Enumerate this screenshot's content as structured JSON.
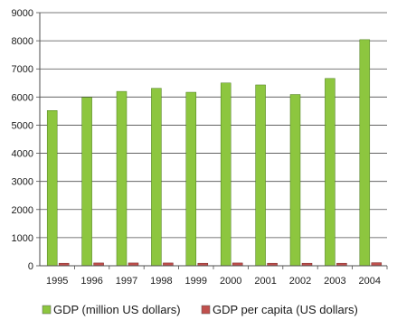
{
  "chart_data": {
    "type": "bar",
    "categories": [
      "1995",
      "1996",
      "1997",
      "1998",
      "1999",
      "2000",
      "2001",
      "2002",
      "2003",
      "2004"
    ],
    "series": [
      {
        "name": "GDP (million US dollars)",
        "color": "#8dc63f",
        "values": [
          5520,
          5990,
          6200,
          6310,
          6170,
          6500,
          6430,
          6090,
          6660,
          8040
        ]
      },
      {
        "name": "GDP per capita (US dollars)",
        "color": "#c0504d",
        "values": [
          90,
          100,
          100,
          100,
          90,
          100,
          90,
          90,
          90,
          110
        ]
      }
    ],
    "ylim": [
      0,
      9000
    ],
    "yticks": [
      "0",
      "1000",
      "2000",
      "3000",
      "4000",
      "5000",
      "6000",
      "7000",
      "8000",
      "9000"
    ],
    "grid": true,
    "legend_position": "bottom"
  }
}
